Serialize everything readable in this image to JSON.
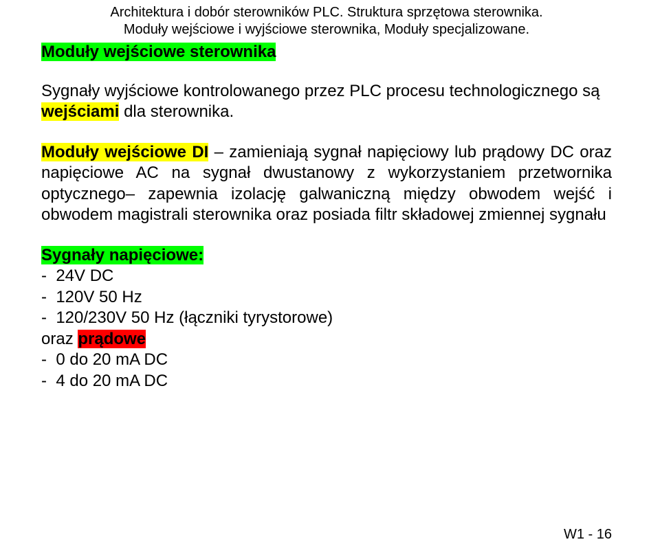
{
  "header": {
    "line1": "Architektura i dobór sterowników PLC. Struktura sprzętowa sterownika.",
    "line2": "Moduły wejściowe i wyjściowe sterownika, Moduły specjalizowane."
  },
  "section_title": "Moduły wejściowe sterownika",
  "para1": {
    "pre": "Sygnały wyjściowe kontrolowanego przez PLC procesu technologicznego są ",
    "hl": "wejściami",
    "post": " dla sterownika."
  },
  "para2": {
    "hl": "Moduły wejściowe DI",
    "rest": " – zamieniają sygnał napięciowy lub prądowy DC oraz napięciowe AC na sygnał dwustanowy z wykorzystaniem przetwornika optycznego– zapewnia izolację galwaniczną między obwodem wejść i obwodem magistrali sterownika oraz posiada filtr składowej zmiennej sygnału"
  },
  "signals": {
    "title": "Sygnały napięciowe:",
    "items": [
      "-  24V DC",
      "-  120V 50 Hz",
      "-  120/230V 50 Hz (łączniki tyrystorowe)"
    ],
    "oraz": "oraz ",
    "pradowe": "prądowe",
    "items2": [
      "-  0 do 20 mA DC",
      "-  4 do 20 mA DC"
    ]
  },
  "footer": "W1 - 16",
  "colors": {
    "green": "#00ff00",
    "yellow": "#ffff00",
    "red": "#ff0000",
    "text": "#000000",
    "bg": "#ffffff"
  }
}
